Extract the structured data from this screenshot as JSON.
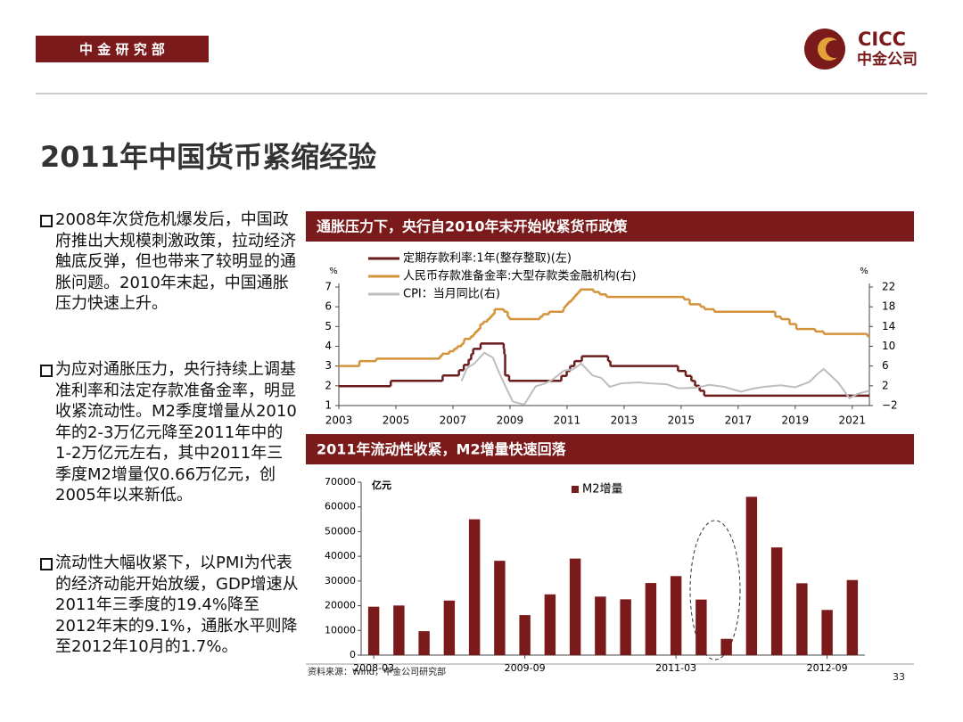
{
  "header": {
    "department": "中 金 研 究 部",
    "logo_en": "CICC",
    "logo_cn": "中金公司"
  },
  "title": "2011年中国货币紧缩经验",
  "bullets": [
    "2008年次贷危机爆发后，中国政府推出大规模刺激政策，拉动经济触底反弹，但也带来了较明显的通胀问题。2010年末起，中国通胀压力快速上升。",
    "为应对通胀压力，央行持续上调基准利率和法定存款准备金率，明显收紧流动性。M2季度增量从2010年的2-3万亿元降至2011年中的1-2万亿元左右，其中2011年三季度M2增量仅0.66万亿元，创2005年以来新低。",
    "流动性大幅收紧下，以PMI为代表的经济动能开始放缓，GDP增速从2011年三季度的19.4%降至2012年末的9.1%，通胀水平则降至2012年10月的1.7%。"
  ],
  "chart_data": [
    {
      "type": "line",
      "title": "通胀压力下，央行自2010年末开始收紧货币政策",
      "ylabel": "%",
      "y2label": "%",
      "xlim": [
        2003,
        2021.6
      ],
      "xticks": [
        2003,
        2005,
        2007,
        2009,
        2011,
        2013,
        2015,
        2017,
        2019,
        2021
      ],
      "ylim": [
        1,
        7
      ],
      "yticks": [
        1,
        2,
        3,
        4,
        5,
        6,
        7
      ],
      "y2lim": [
        -2,
        22
      ],
      "y2ticks": [
        {
          "value": -2,
          "label": "−2"
        },
        2,
        6,
        10,
        14,
        18,
        22
      ],
      "series": [
        {
          "name": "定期存款利率:1年(整存整取)(左)",
          "color": "#6b1b1b",
          "step": true,
          "x": [
            2003.0,
            2004.82,
            2006.64,
            2007.21,
            2007.38,
            2007.55,
            2007.64,
            2007.71,
            2007.97,
            2008.78,
            2008.8,
            2008.83,
            2008.97,
            2010.8,
            2010.99,
            2011.11,
            2011.26,
            2011.52,
            2012.44,
            2012.52,
            2014.89,
            2015.16,
            2015.36,
            2015.49,
            2015.65,
            2015.81
          ],
          "values": [
            1.98,
            2.25,
            2.52,
            2.79,
            3.06,
            3.33,
            3.6,
            3.87,
            4.14,
            3.87,
            3.6,
            2.52,
            2.25,
            2.5,
            2.75,
            3.0,
            3.25,
            3.5,
            3.25,
            3.0,
            2.75,
            2.5,
            2.25,
            2.0,
            1.75,
            1.5
          ]
        },
        {
          "name": "人民币存款准备金率:大型存款类金融机构(右)",
          "color": "#d4923a",
          "step": true,
          "axis": "y2",
          "x": [
            2003.0,
            2003.72,
            2004.31,
            2006.54,
            2006.62,
            2006.87,
            2007.04,
            2007.15,
            2007.3,
            2007.38,
            2007.4,
            2007.62,
            2007.72,
            2007.79,
            2007.88,
            2007.96,
            2008.07,
            2008.21,
            2008.3,
            2008.38,
            2008.46,
            2008.79,
            2008.92,
            2008.98,
            2010.05,
            2010.15,
            2010.37,
            2010.87,
            2010.9,
            2010.97,
            2011.05,
            2011.15,
            2011.23,
            2011.3,
            2011.38,
            2011.46,
            2011.93,
            2012.14,
            2012.38,
            2015.1,
            2015.3,
            2015.68,
            2015.82,
            2016.16,
            2018.3,
            2018.5,
            2018.8,
            2019.04,
            2019.7,
            2020.0,
            2021.53
          ],
          "values": [
            6,
            7,
            7.5,
            8,
            8.5,
            9,
            9.5,
            10,
            10.5,
            11,
            11.5,
            12,
            12.5,
            13,
            13.5,
            14.5,
            15,
            15.5,
            16,
            16.5,
            17.5,
            17,
            16,
            15.5,
            16,
            16.5,
            17,
            17.5,
            18,
            18.5,
            19,
            19.5,
            20,
            20.5,
            21,
            21.5,
            21,
            20.5,
            20,
            19.5,
            18.5,
            18,
            17.5,
            17,
            16,
            15.5,
            14.5,
            13.5,
            13,
            12.5,
            12
          ]
        },
        {
          "name": "CPI：当月同比(右)",
          "color": "#bdbdbd",
          "axis": "y2",
          "x": [
            2007.3,
            2007.5,
            2007.75,
            2008.1,
            2008.4,
            2008.6,
            2008.9,
            2009.1,
            2009.5,
            2009.9,
            2010.2,
            2010.5,
            2010.9,
            2011.2,
            2011.5,
            2011.9,
            2012.2,
            2012.5,
            2012.9,
            2013.5,
            2013.9,
            2014.5,
            2014.9,
            2015.5,
            2016.0,
            2016.5,
            2017.1,
            2017.5,
            2017.9,
            2018.5,
            2019.0,
            2019.5,
            2019.8,
            2020.0,
            2020.5,
            2020.9,
            2021.2,
            2021.6
          ],
          "values": [
            3.0,
            5.6,
            6.5,
            8.7,
            7.7,
            4.9,
            1.2,
            -1.2,
            -1.8,
            1.9,
            2.4,
            3.3,
            5.1,
            5.3,
            6.5,
            4.1,
            3.6,
            1.8,
            2.5,
            2.7,
            2.5,
            2.3,
            1.5,
            1.6,
            2.2,
            1.8,
            0.8,
            1.4,
            1.8,
            2.1,
            1.7,
            2.8,
            4.5,
            5.4,
            2.7,
            -0.5,
            0.4,
            1.0
          ]
        }
      ]
    },
    {
      "type": "bar",
      "title": "2011年流动性收紧，M2增量快速回落",
      "ylabel": "亿元",
      "categories": [
        "2008-03",
        null,
        null,
        null,
        null,
        null,
        "2009-09",
        null,
        null,
        null,
        null,
        null,
        "2011-03",
        null,
        null,
        null,
        null,
        null,
        "2012-09",
        null
      ],
      "series": [
        {
          "name": "M2增量",
          "color": "#7b1a1a",
          "values": [
            19600,
            20100,
            9700,
            22100,
            55000,
            38200,
            16200,
            24600,
            39100,
            23700,
            22600,
            29200,
            32000,
            22500,
            6600,
            64100,
            43600,
            29100,
            18300,
            30400
          ]
        }
      ],
      "ylim": [
        0,
        70000
      ],
      "yticks": [
        0,
        10000,
        20000,
        30000,
        40000,
        50000,
        60000,
        70000
      ]
    }
  ],
  "source": "资料来源：Wind，中金公司研究部",
  "page_number": "33"
}
